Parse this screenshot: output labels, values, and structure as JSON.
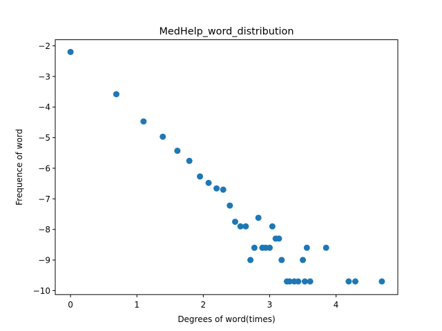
{
  "chart_data": {
    "type": "scatter",
    "title": "MedHelp_word_distribution",
    "xlabel": "Degrees of word(times)",
    "ylabel": "Frequence of word",
    "xlim": [
      -0.23,
      4.93
    ],
    "ylim": [
      -10.13,
      -1.8
    ],
    "xticks": [
      0,
      1,
      2,
      3,
      4
    ],
    "yticks": [
      -10,
      -9,
      -8,
      -7,
      -6,
      -5,
      -4,
      -3,
      -2
    ],
    "xtick_labels": [
      "0",
      "1",
      "2",
      "3",
      "4"
    ],
    "ytick_labels": [
      "−10",
      "−9",
      "−8",
      "−7",
      "−6",
      "−5",
      "−4",
      "−3",
      "−2"
    ],
    "grid": false,
    "marker_color": "#1f77b4",
    "points": [
      {
        "x": 0.0,
        "y": -2.2
      },
      {
        "x": 0.69,
        "y": -3.58
      },
      {
        "x": 1.1,
        "y": -4.47
      },
      {
        "x": 1.39,
        "y": -4.97
      },
      {
        "x": 1.61,
        "y": -5.43
      },
      {
        "x": 1.79,
        "y": -5.76
      },
      {
        "x": 1.95,
        "y": -6.27
      },
      {
        "x": 2.08,
        "y": -6.48
      },
      {
        "x": 2.2,
        "y": -6.66
      },
      {
        "x": 2.3,
        "y": -6.7
      },
      {
        "x": 2.4,
        "y": -7.22
      },
      {
        "x": 2.48,
        "y": -7.75
      },
      {
        "x": 2.56,
        "y": -7.9
      },
      {
        "x": 2.64,
        "y": -7.9
      },
      {
        "x": 2.71,
        "y": -9.0
      },
      {
        "x": 2.77,
        "y": -8.6
      },
      {
        "x": 2.83,
        "y": -7.62
      },
      {
        "x": 2.89,
        "y": -8.6
      },
      {
        "x": 2.94,
        "y": -8.6
      },
      {
        "x": 3.0,
        "y": -8.6
      },
      {
        "x": 3.04,
        "y": -7.9
      },
      {
        "x": 3.09,
        "y": -8.3
      },
      {
        "x": 3.14,
        "y": -8.3
      },
      {
        "x": 3.18,
        "y": -9.0
      },
      {
        "x": 3.26,
        "y": -9.7
      },
      {
        "x": 3.3,
        "y": -9.7
      },
      {
        "x": 3.37,
        "y": -9.7
      },
      {
        "x": 3.43,
        "y": -9.7
      },
      {
        "x": 3.5,
        "y": -9.0
      },
      {
        "x": 3.53,
        "y": -9.7
      },
      {
        "x": 3.56,
        "y": -8.6
      },
      {
        "x": 3.61,
        "y": -9.7
      },
      {
        "x": 3.85,
        "y": -8.6
      },
      {
        "x": 4.19,
        "y": -9.7
      },
      {
        "x": 4.29,
        "y": -9.7
      },
      {
        "x": 4.69,
        "y": -9.7
      }
    ]
  }
}
